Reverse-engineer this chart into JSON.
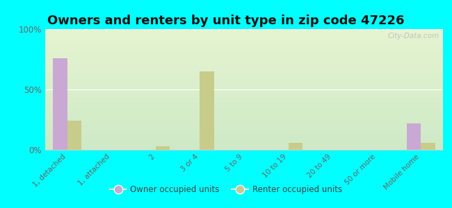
{
  "title": "Owners and renters by unit type in zip code 47226",
  "categories": [
    "1, detached",
    "1, attached",
    "2",
    "3 or 4",
    "5 to 9",
    "10 to 19",
    "20 to 49",
    "50 or more",
    "Mobile home"
  ],
  "owner_values": [
    76,
    0,
    0,
    0,
    0,
    0,
    0,
    0,
    22
  ],
  "renter_values": [
    24,
    0,
    3,
    65,
    0,
    6,
    0,
    0,
    6
  ],
  "owner_color": "#c9a8d4",
  "renter_color": "#c8cc8a",
  "background_color": "#00ffff",
  "ylabel_ticks": [
    "0%",
    "50%",
    "100%"
  ],
  "yticks": [
    0,
    50,
    100
  ],
  "ylim": [
    0,
    100
  ],
  "watermark": "City-Data.com",
  "legend_owner": "Owner occupied units",
  "legend_renter": "Renter occupied units",
  "title_fontsize": 13,
  "bar_width": 0.32
}
